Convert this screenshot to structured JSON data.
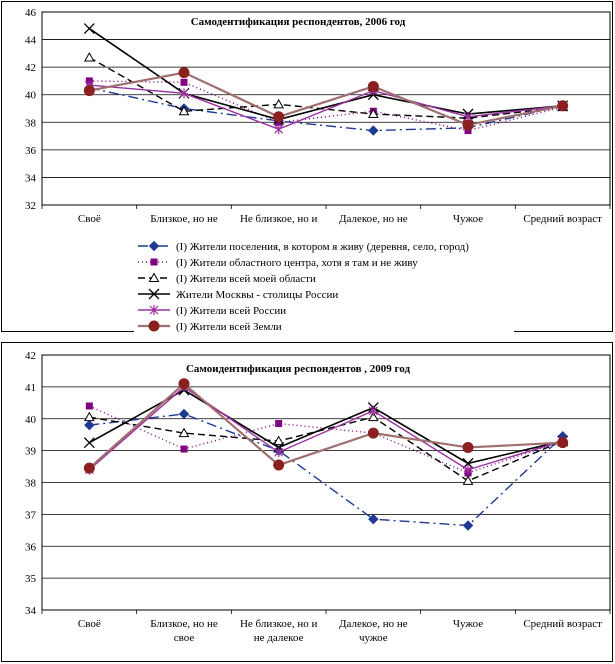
{
  "chart_data": [
    {
      "type": "line",
      "title": "Самодентификация респондентов, 2006 год",
      "categories": [
        [
          "Своё"
        ],
        [
          "Близкое, но не"
        ],
        [
          "Не близкое, но и"
        ],
        [
          "Далекое, но не"
        ],
        [
          "Чужое"
        ],
        [
          "Средний возраст"
        ]
      ],
      "ylim": [
        32,
        46
      ],
      "yticks": [
        32,
        34,
        36,
        38,
        40,
        42,
        44,
        46
      ],
      "grid": true,
      "legend": "bottom",
      "series": [
        {
          "name": "(I) Жители поселения, в котором я живу (деревня, село, город)",
          "color": "#1f3a93",
          "dash": "10,4,2,4",
          "marker": "diamond",
          "values": [
            40.5,
            39.0,
            38.1,
            37.4,
            37.6,
            39.2
          ]
        },
        {
          "name": "(I) Жители областного центра, хотя я там и не живу",
          "color": "#800080",
          "dash": "1,3",
          "marker": "square",
          "values": [
            41.0,
            40.9,
            38.0,
            38.8,
            37.4,
            39.1
          ]
        },
        {
          "name": "(I) Жители всей моей области",
          "color": "#000000",
          "dash": "7,4",
          "marker": "triangle",
          "values": [
            42.7,
            38.8,
            39.3,
            38.6,
            38.3,
            39.1
          ]
        },
        {
          "name": "Жители Москвы - столицы России",
          "color": "#000000",
          "dash": "",
          "marker": "x",
          "values": [
            44.8,
            40.1,
            38.2,
            40.0,
            38.6,
            39.2
          ]
        },
        {
          "name": "(I) Жители всей России",
          "color": "#9b30a0",
          "dash": "",
          "marker": "star",
          "values": [
            40.7,
            40.1,
            37.5,
            40.3,
            38.4,
            39.2
          ]
        },
        {
          "name": "(I) Жители всей Земли",
          "color": "#a07070",
          "dash": "",
          "marker": "circle",
          "values": [
            40.3,
            41.6,
            38.4,
            40.6,
            37.8,
            39.2
          ]
        }
      ]
    },
    {
      "type": "line",
      "title": "Самоидентификация респондентов , 2009 год",
      "categories": [
        [
          "Своё"
        ],
        [
          "Близкое, но не",
          "свое"
        ],
        [
          "Не близкое, но и",
          "не далекое"
        ],
        [
          "Далекое, но не",
          "чужое"
        ],
        [
          "Чужое"
        ],
        [
          "Средний возраст"
        ]
      ],
      "ylim": [
        34,
        42
      ],
      "yticks": [
        34,
        35,
        36,
        37,
        38,
        39,
        40,
        41,
        42
      ],
      "grid": true,
      "legend": "none",
      "series": [
        {
          "color": "#1f3a93",
          "dash": "10,4,2,4",
          "marker": "diamond",
          "values": [
            39.8,
            40.15,
            39.0,
            36.85,
            36.65,
            39.45
          ]
        },
        {
          "color": "#800080",
          "dash": "1,3",
          "marker": "square",
          "values": [
            40.4,
            39.05,
            39.85,
            39.55,
            38.3,
            39.3
          ]
        },
        {
          "color": "#000000",
          "dash": "7,4",
          "marker": "triangle",
          "values": [
            40.05,
            39.55,
            39.3,
            40.05,
            38.05,
            39.3
          ]
        },
        {
          "color": "#000000",
          "dash": "",
          "marker": "x",
          "values": [
            39.25,
            40.9,
            39.1,
            40.35,
            38.6,
            39.3
          ]
        },
        {
          "color": "#9b30a0",
          "dash": "",
          "marker": "star",
          "values": [
            38.4,
            41.0,
            38.95,
            40.25,
            38.4,
            39.3
          ]
        },
        {
          "color": "#a07070",
          "dash": "",
          "marker": "circle",
          "values": [
            38.45,
            41.1,
            38.55,
            39.55,
            39.1,
            39.25
          ]
        }
      ]
    }
  ]
}
